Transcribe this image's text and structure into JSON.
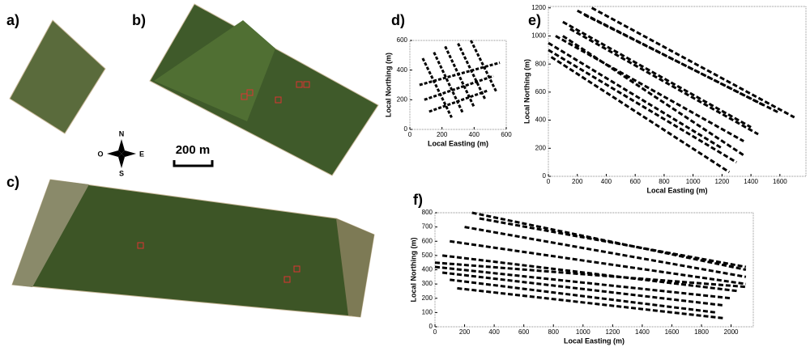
{
  "panels": {
    "a": "a)",
    "b": "b)",
    "c": "c)"
  },
  "compass": {
    "n": "N",
    "s": "S",
    "e": "E",
    "w": "O"
  },
  "scale_label": "200 m",
  "chart_data": [
    {
      "type": "line",
      "title": "d)",
      "x_label": "Local Easting (m)",
      "y_label": "Local Northing (m)",
      "color": "#000000",
      "xlim": [
        0,
        600
      ],
      "xticks": [
        0,
        200,
        400,
        600
      ],
      "ylim": [
        0,
        600
      ],
      "yticks": [
        0,
        200,
        400,
        600
      ],
      "series": [
        {
          "x": [
            80,
            260
          ],
          "values": [
            480,
            80
          ]
        },
        {
          "x": [
            150,
            330
          ],
          "values": [
            520,
            110
          ]
        },
        {
          "x": [
            220,
            400
          ],
          "values": [
            560,
            150
          ]
        },
        {
          "x": [
            300,
            470
          ],
          "values": [
            580,
            200
          ]
        },
        {
          "x": [
            380,
            540
          ],
          "values": [
            600,
            250
          ]
        },
        {
          "x": [
            60,
            560
          ],
          "values": [
            300,
            450
          ]
        },
        {
          "x": [
            90,
            520
          ],
          "values": [
            200,
            360
          ]
        },
        {
          "x": [
            120,
            480
          ],
          "values": [
            120,
            260
          ]
        }
      ]
    },
    {
      "type": "line",
      "title": "e)",
      "x_label": "Local Easting (m)",
      "y_label": "Local Northing (m)",
      "color": "#000000",
      "xlim": [
        0,
        1780
      ],
      "xticks": [
        0,
        200,
        400,
        600,
        800,
        1000,
        1200,
        1400,
        1600
      ],
      "ylim": [
        0,
        1210
      ],
      "yticks": [
        0,
        200,
        400,
        600,
        800,
        1000,
        1200
      ],
      "series": [
        {
          "x": [
            0,
            1300
          ],
          "values": [
            900,
            100
          ]
        },
        {
          "x": [
            50,
            1350
          ],
          "values": [
            1000,
            250
          ]
        },
        {
          "x": [
            100,
            1400
          ],
          "values": [
            1100,
            350
          ]
        },
        {
          "x": [
            200,
            1500
          ],
          "values": [
            1180,
            500
          ]
        },
        {
          "x": [
            300,
            1700
          ],
          "values": [
            1200,
            420
          ]
        },
        {
          "x": [
            20,
            1250
          ],
          "values": [
            850,
            30
          ]
        },
        {
          "x": [
            150,
            1450
          ],
          "values": [
            1050,
            300
          ]
        },
        {
          "x": [
            250,
            1600
          ],
          "values": [
            1150,
            450
          ]
        },
        {
          "x": [
            0,
            1200
          ],
          "values": [
            950,
            200
          ]
        },
        {
          "x": [
            100,
            1350
          ],
          "values": [
            1000,
            150
          ]
        }
      ]
    },
    {
      "type": "line",
      "title": "f)",
      "x_label": "Local Easting (m)",
      "y_label": "Local Northing (m)",
      "color": "#000000",
      "xlim": [
        0,
        2150
      ],
      "xticks": [
        0,
        200,
        400,
        600,
        800,
        1000,
        1200,
        1400,
        1600,
        1800,
        2000
      ],
      "ylim": [
        0,
        800
      ],
      "yticks": [
        0,
        100,
        200,
        300,
        400,
        500,
        600,
        700,
        800
      ],
      "series": [
        {
          "x": [
            250,
            2100
          ],
          "values": [
            800,
            400
          ]
        },
        {
          "x": [
            200,
            2100
          ],
          "values": [
            700,
            350
          ]
        },
        {
          "x": [
            100,
            2100
          ],
          "values": [
            600,
            300
          ]
        },
        {
          "x": [
            50,
            2050
          ],
          "values": [
            500,
            250
          ]
        },
        {
          "x": [
            0,
            2000
          ],
          "values": [
            420,
            200
          ]
        },
        {
          "x": [
            50,
            1950
          ],
          "values": [
            380,
            150
          ]
        },
        {
          "x": [
            100,
            1900
          ],
          "values": [
            330,
            100
          ]
        },
        {
          "x": [
            150,
            1950
          ],
          "values": [
            270,
            60
          ]
        },
        {
          "x": [
            300,
            2100
          ],
          "values": [
            760,
            420
          ]
        },
        {
          "x": [
            0,
            2100
          ],
          "values": [
            450,
            280
          ]
        }
      ]
    }
  ]
}
